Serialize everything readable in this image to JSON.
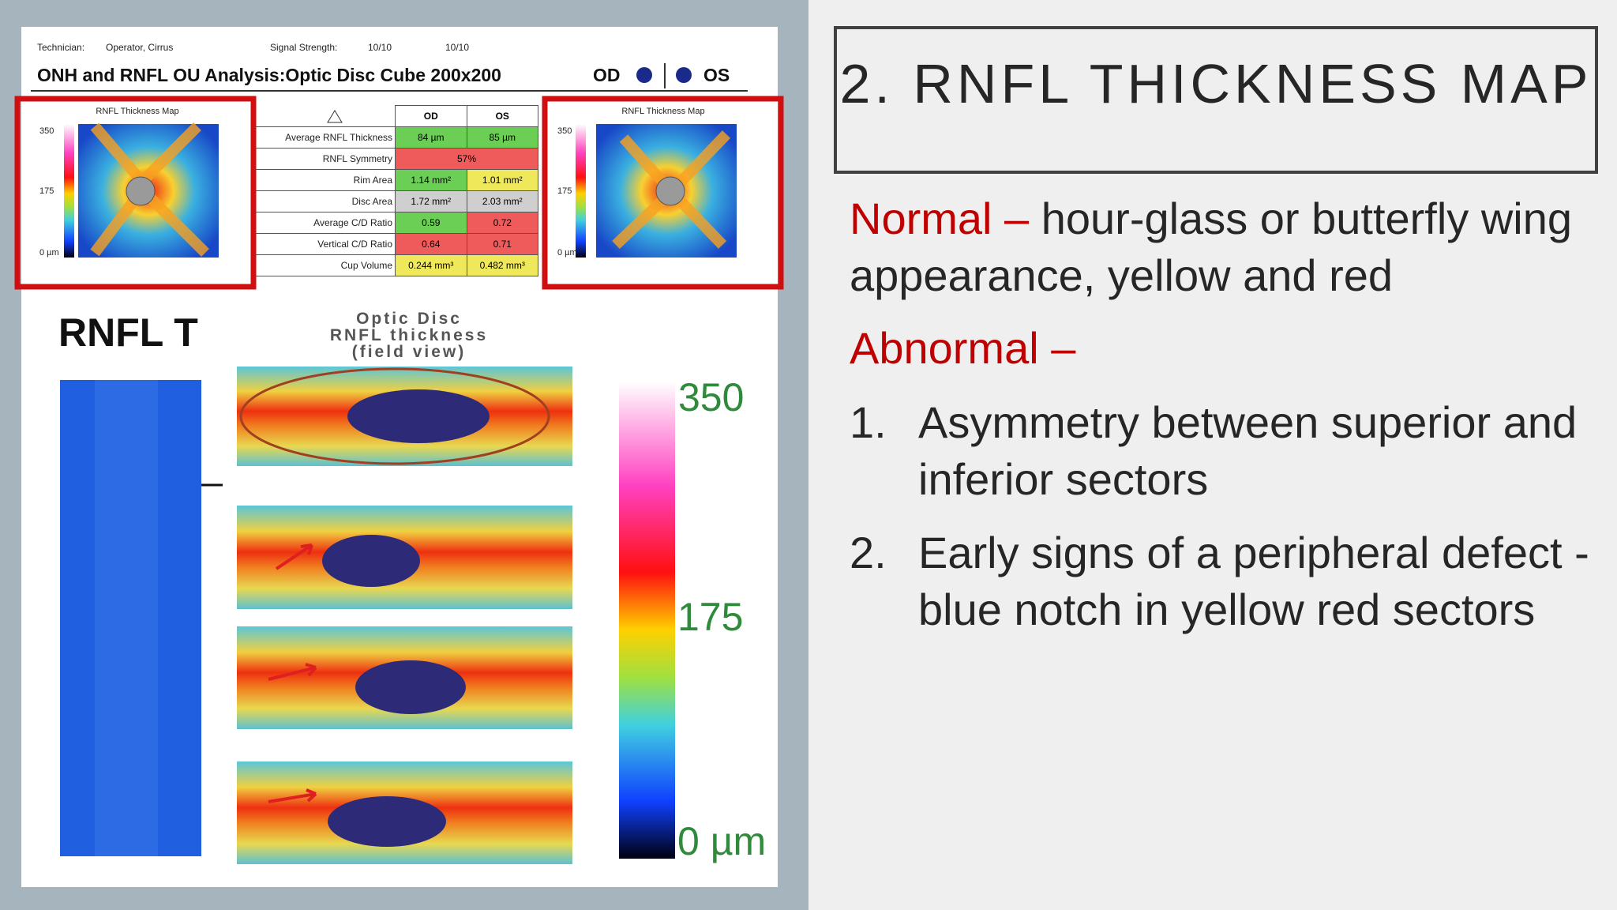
{
  "slide": {
    "title": "2. RNFL THICKNESS MAP",
    "normal": {
      "label": "Normal –",
      "text": "hour-glass or butterfly wing appearance, yellow and red"
    },
    "abnormal": {
      "label": "Abnormal –",
      "items": [
        {
          "number": "1.",
          "text": "Asymmetry between superior and inferior sectors"
        },
        {
          "number": "2.",
          "text": "Early signs of a peripheral defect -blue notch in yellow red sectors"
        }
      ]
    }
  },
  "report": {
    "technician_label": "Technician:",
    "technician": "Operator, Cirrus",
    "signal_label": "Signal Strength:",
    "signal_od": "10/10",
    "signal_os": "10/10",
    "title": "ONH and RNFL OU Analysis:Optic Disc Cube 200x200",
    "od": "OD",
    "os": "OS",
    "maps": [
      {
        "title": "RNFL Thickness Map",
        "scale": [
          "350",
          "175",
          "0 µm"
        ]
      },
      {
        "title": "RNFL Thickness Map",
        "scale": [
          "350",
          "175",
          "0 µm"
        ]
      }
    ],
    "table": {
      "columns": [
        "OD",
        "OS"
      ],
      "rows": [
        {
          "label": "Average RNFL Thickness",
          "od": "84 µm",
          "os": "85 µm"
        },
        {
          "label": "RNFL Symmetry",
          "both": "57%"
        },
        {
          "label": "Rim Area",
          "od": "1.14 mm²",
          "os": "1.01 mm²"
        },
        {
          "label": "Disc Area",
          "od": "1.72 mm²",
          "os": "2.03 mm²"
        },
        {
          "label": "Average C/D Ratio",
          "od": "0.59",
          "os": "0.72"
        },
        {
          "label": "Vertical C/D Ratio",
          "od": "0.64",
          "os": "0.71"
        },
        {
          "label": "Cup Volume",
          "od": "0.244 mm³",
          "os": "0.482 mm³"
        }
      ]
    }
  },
  "figure": {
    "heading": "RNFL T",
    "caption": [
      "Optic Disc",
      "RNFL thickness",
      "(field view)"
    ],
    "scale": [
      "350",
      "175",
      "0 µm"
    ]
  }
}
